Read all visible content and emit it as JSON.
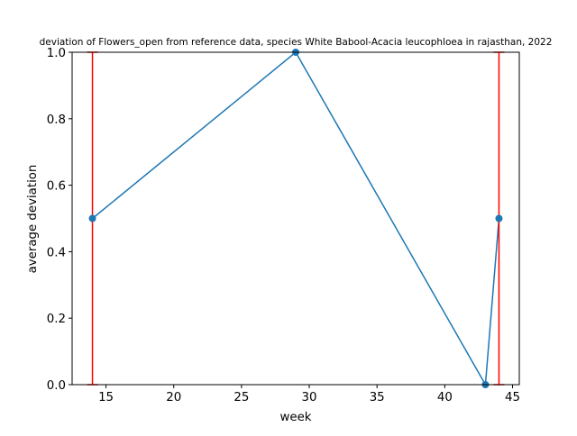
{
  "chart_data": {
    "type": "line",
    "title": "deviation of Flowers_open from reference data, species White Babool-Acacia leucophloea in rajasthan, 2022",
    "xlabel": "week",
    "ylabel": "average deviation",
    "xlim": [
      12.5,
      45.5
    ],
    "ylim": [
      0.0,
      1.0
    ],
    "x_ticks": [
      15,
      20,
      25,
      30,
      35,
      40,
      45
    ],
    "y_ticks": [
      0.0,
      0.2,
      0.4,
      0.6,
      0.8,
      1.0
    ],
    "x_tick_labels": [
      "15",
      "20",
      "25",
      "30",
      "35",
      "40",
      "45"
    ],
    "y_tick_labels": [
      "0.0",
      "0.2",
      "0.4",
      "0.6",
      "0.8",
      "1.0"
    ],
    "grid": false,
    "series": [
      {
        "x": [
          14,
          29,
          43,
          44
        ],
        "y": [
          0.5,
          1.0,
          0.0,
          0.5
        ],
        "color": "#1f77b4",
        "marker": "circle"
      }
    ],
    "error_bars": {
      "color": "#ff0000",
      "x": [
        14,
        29,
        43,
        44
      ],
      "y": [
        0.5,
        1.0,
        0.0,
        0.5
      ],
      "lower": [
        0.5,
        0.0,
        0.0,
        0.5
      ],
      "upper": [
        0.5,
        0.0,
        0.0,
        0.5
      ]
    }
  }
}
